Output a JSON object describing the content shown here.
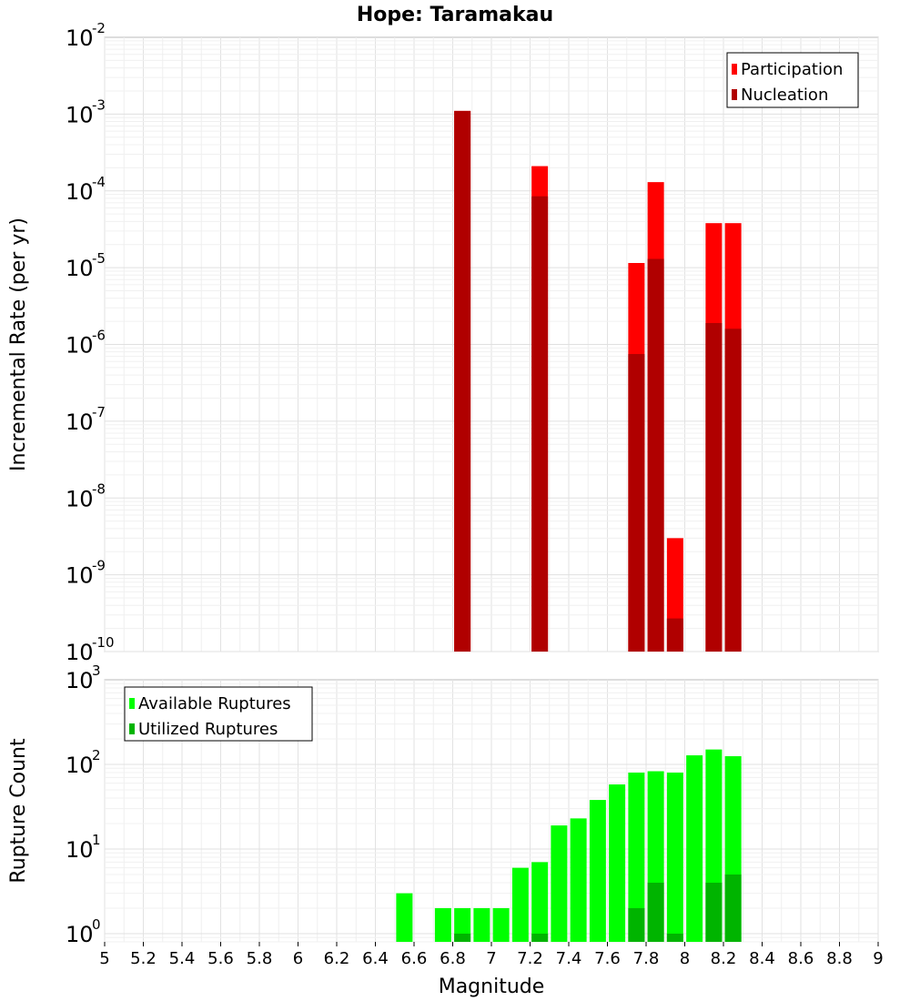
{
  "chart_data": [
    {
      "type": "bar",
      "title": "Hope: Taramakau",
      "xlabel": "Magnitude",
      "ylabel": "Incremental Rate (per yr)",
      "yscale": "log",
      "xlim": [
        5,
        9
      ],
      "ylim": [
        1e-10,
        0.01
      ],
      "x_ticks": [
        "5",
        "5.2",
        "5.4",
        "5.6",
        "5.8",
        "6",
        "6.2",
        "6.4",
        "6.6",
        "6.8",
        "7",
        "7.2",
        "7.4",
        "7.6",
        "7.8",
        "8",
        "8.2",
        "8.4",
        "8.6",
        "8.8",
        "9"
      ],
      "y_ticks": [
        {
          "base": "10",
          "exp": "-10",
          "value": 1e-10
        },
        {
          "base": "10",
          "exp": "-9",
          "value": 1e-09
        },
        {
          "base": "10",
          "exp": "-8",
          "value": 1e-08
        },
        {
          "base": "10",
          "exp": "-7",
          "value": 1e-07
        },
        {
          "base": "10",
          "exp": "-6",
          "value": 1e-06
        },
        {
          "base": "10",
          "exp": "-5",
          "value": 1e-05
        },
        {
          "base": "10",
          "exp": "-4",
          "value": 0.0001
        },
        {
          "base": "10",
          "exp": "-3",
          "value": 0.001
        },
        {
          "base": "10",
          "exp": "-2",
          "value": 0.01
        }
      ],
      "legend_position": "top-right",
      "grid": true,
      "series": [
        {
          "name": "Participation",
          "color": "#ff0000",
          "x": [
            6.85,
            7.25,
            7.75,
            7.85,
            7.95,
            8.15,
            8.25
          ],
          "values": [
            0.0011,
            0.00021,
            1.15e-05,
            0.00013,
            3e-09,
            3.8e-05,
            3.8e-05
          ]
        },
        {
          "name": "Nucleation",
          "color": "#b00000",
          "x": [
            6.85,
            7.25,
            7.75,
            7.85,
            7.95,
            8.15,
            8.25
          ],
          "values": [
            0.0011,
            8.5e-05,
            7.5e-07,
            1.3e-05,
            2.7e-10,
            1.9e-06,
            1.6e-06
          ]
        }
      ]
    },
    {
      "type": "bar",
      "xlabel": "Magnitude",
      "ylabel": "Rupture Count",
      "yscale": "log",
      "xlim": [
        5,
        9
      ],
      "ylim": [
        0.8,
        1000
      ],
      "y_ticks": [
        {
          "base": "10",
          "exp": "0",
          "value": 1
        },
        {
          "base": "10",
          "exp": "1",
          "value": 10
        },
        {
          "base": "10",
          "exp": "2",
          "value": 100
        },
        {
          "base": "10",
          "exp": "3",
          "value": 1000
        }
      ],
      "legend_position": "top-left",
      "grid": true,
      "series": [
        {
          "name": "Available Ruptures",
          "color": "#00ff00",
          "x": [
            6.55,
            6.75,
            6.85,
            6.95,
            7.05,
            7.15,
            7.25,
            7.35,
            7.45,
            7.55,
            7.65,
            7.75,
            7.85,
            7.95,
            8.05,
            8.15,
            8.25
          ],
          "values": [
            3,
            2,
            2,
            2,
            2,
            6,
            7,
            19,
            23,
            38,
            58,
            80,
            83,
            80,
            128,
            150,
            125
          ]
        },
        {
          "name": "Utilized Ruptures",
          "color": "#00b400",
          "x": [
            6.85,
            7.25,
            7.75,
            7.85,
            7.95,
            8.15,
            8.25
          ],
          "values": [
            1,
            1,
            2,
            4,
            1,
            4,
            5
          ]
        }
      ]
    }
  ]
}
